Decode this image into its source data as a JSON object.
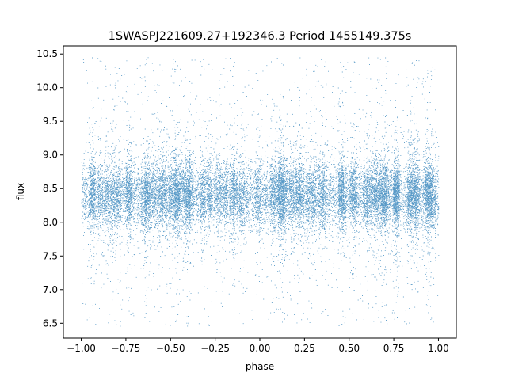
{
  "chart_data": {
    "type": "scatter",
    "title": "1SWASPJ221609.27+192346.3 Period 1455149.375s",
    "xlabel": "phase",
    "ylabel": "flux",
    "xlim": [
      -1.1,
      1.1
    ],
    "ylim": [
      6.28,
      10.62
    ],
    "x_ticks": [
      -1.0,
      -0.75,
      -0.5,
      -0.25,
      0.0,
      0.25,
      0.5,
      0.75,
      1.0
    ],
    "x_tick_labels": [
      "−1.00",
      "−0.75",
      "−0.50",
      "−0.25",
      "0.00",
      "0.25",
      "0.50",
      "0.75",
      "1.00"
    ],
    "y_ticks": [
      6.5,
      7.0,
      7.5,
      8.0,
      8.5,
      9.0,
      9.5,
      10.0,
      10.5
    ],
    "y_tick_labels": [
      "6.5",
      "7.0",
      "7.5",
      "8.0",
      "8.5",
      "9.0",
      "9.5",
      "10.0",
      "10.5"
    ],
    "grid": false,
    "legend": "none",
    "series_color": "#1f77b4",
    "phase_range": [
      -1.0,
      1.0
    ],
    "flux_center": 8.4,
    "flux_core_range": [
      7.9,
      8.9
    ],
    "flux_full_range": [
      6.45,
      10.45
    ],
    "point_count_estimate": 24000
  }
}
